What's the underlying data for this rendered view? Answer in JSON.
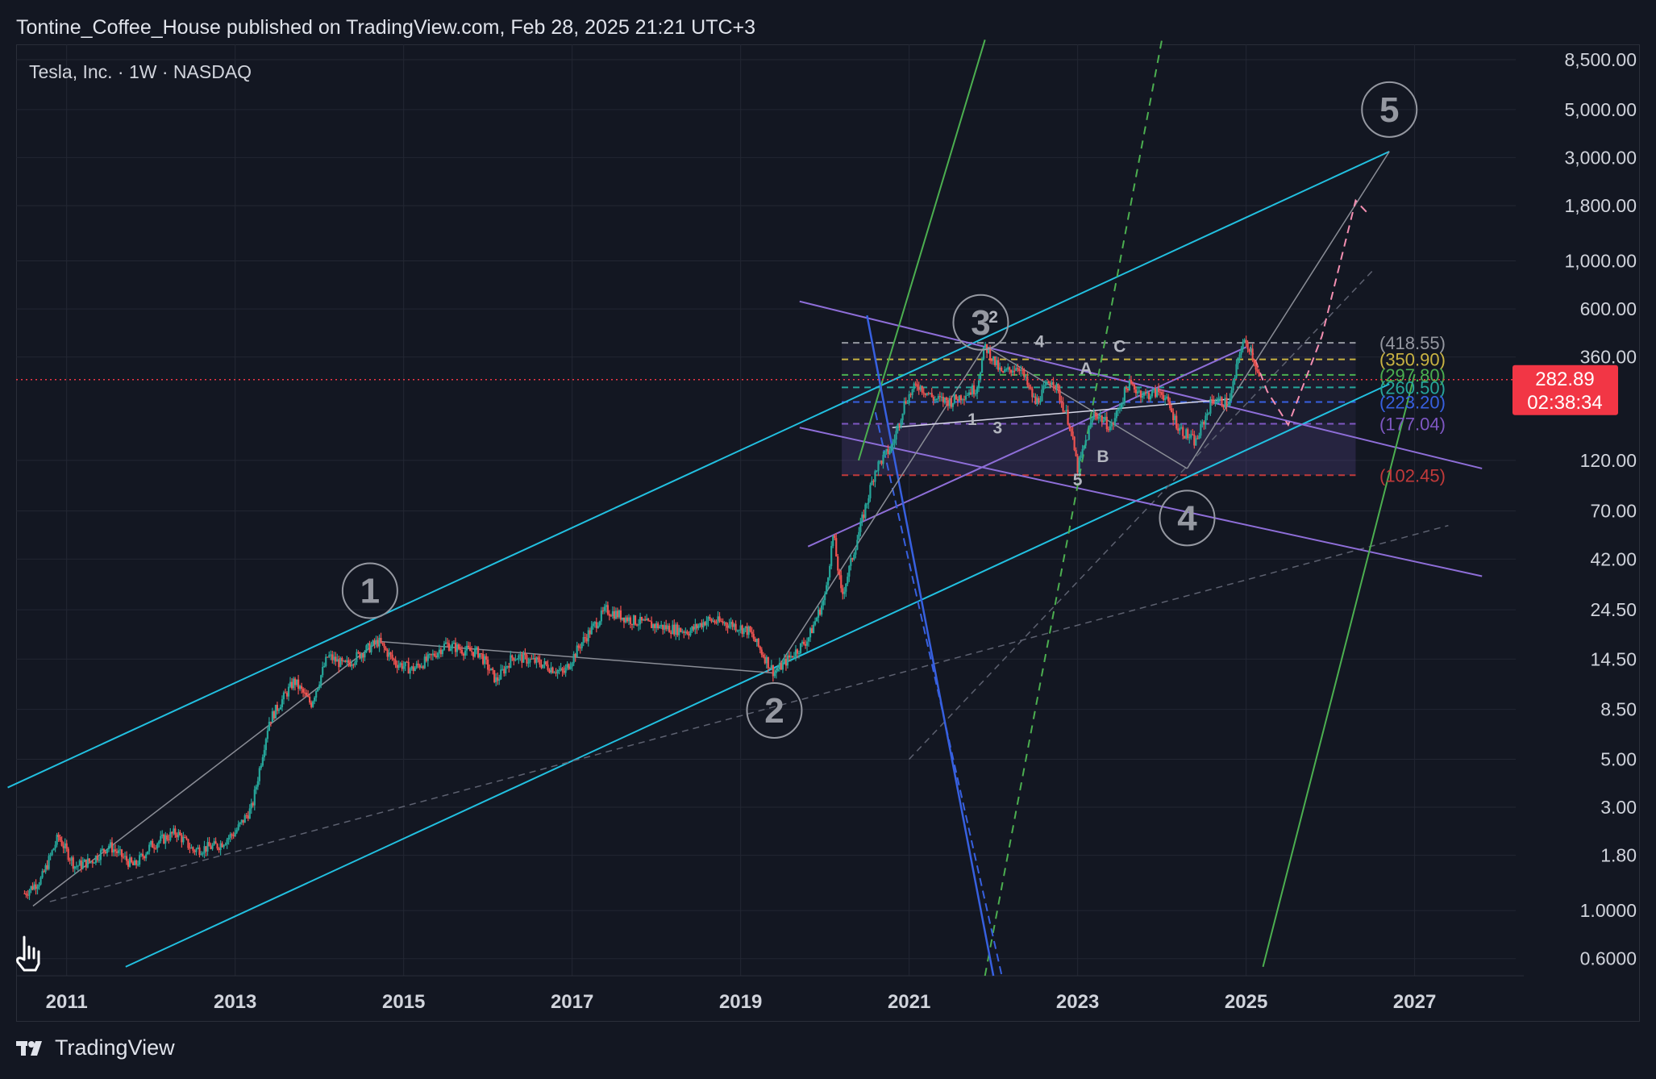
{
  "header": {
    "published": "Tontine_Coffee_House published on TradingView.com, Feb 28, 2025 21:21 UTC+3"
  },
  "symbol": {
    "label": "Tesla, Inc. · 1W · NASDAQ"
  },
  "footer": {
    "brand": "TradingView"
  },
  "colors": {
    "up": "#26a69a",
    "down": "#ef5350",
    "channel": "#22c0e0",
    "purple": "#8e6ed8",
    "green": "#4caf50",
    "blue": "#3760e0",
    "priceTag": "#f23645"
  },
  "chart_data": {
    "type": "line",
    "title": "Tesla, Inc. · 1W · NASDAQ",
    "y_scale": "log",
    "x_range": [
      2010.4,
      2028.2
    ],
    "y_range": [
      0.5,
      10000
    ],
    "y_ticks": [
      "8,500.00",
      "5,000.00",
      "3,000.00",
      "1,800.00",
      "1,000.00",
      "600.00",
      "360.00",
      "120.00",
      "70.00",
      "42.00",
      "24.50",
      "14.50",
      "8.50",
      "5.00",
      "3.00",
      "1.80",
      "1.0000",
      "0.6000"
    ],
    "y_tick_values": [
      8500,
      5000,
      3000,
      1800,
      1000,
      600,
      360,
      120,
      70,
      42,
      24.5,
      14.5,
      8.5,
      5,
      3,
      1.8,
      1,
      0.6
    ],
    "x_ticks": [
      "2011",
      "2013",
      "2015",
      "2017",
      "2019",
      "2021",
      "2023",
      "2025",
      "2027"
    ],
    "x_tick_values": [
      2011,
      2013,
      2015,
      2017,
      2019,
      2021,
      2023,
      2025,
      2027
    ],
    "price_path": [
      [
        2010.5,
        1.2
      ],
      [
        2010.7,
        1.4
      ],
      [
        2010.9,
        2.2
      ],
      [
        2011.1,
        1.6
      ],
      [
        2011.3,
        1.7
      ],
      [
        2011.5,
        2.0
      ],
      [
        2011.8,
        1.6
      ],
      [
        2012.0,
        2.0
      ],
      [
        2012.3,
        2.3
      ],
      [
        2012.5,
        1.9
      ],
      [
        2012.8,
        2.0
      ],
      [
        2013.0,
        2.3
      ],
      [
        2013.2,
        3.0
      ],
      [
        2013.4,
        7.5
      ],
      [
        2013.7,
        11.5
      ],
      [
        2013.9,
        9.0
      ],
      [
        2014.1,
        15.0
      ],
      [
        2014.3,
        13.5
      ],
      [
        2014.5,
        15.5
      ],
      [
        2014.7,
        17.5
      ],
      [
        2014.9,
        14.0
      ],
      [
        2015.1,
        13.0
      ],
      [
        2015.3,
        14.5
      ],
      [
        2015.5,
        17.0
      ],
      [
        2015.7,
        16.0
      ],
      [
        2015.9,
        15.5
      ],
      [
        2016.1,
        11.5
      ],
      [
        2016.3,
        15.0
      ],
      [
        2016.6,
        14.0
      ],
      [
        2016.9,
        12.5
      ],
      [
        2017.1,
        17.0
      ],
      [
        2017.4,
        24.5
      ],
      [
        2017.7,
        22.0
      ],
      [
        2017.9,
        21.0
      ],
      [
        2018.2,
        20.0
      ],
      [
        2018.4,
        19.5
      ],
      [
        2018.6,
        22.0
      ],
      [
        2018.9,
        21.0
      ],
      [
        2019.1,
        19.5
      ],
      [
        2019.4,
        12.5
      ],
      [
        2019.6,
        15.0
      ],
      [
        2019.8,
        18.0
      ],
      [
        2020.0,
        28.0
      ],
      [
        2020.1,
        55.0
      ],
      [
        2020.2,
        28.0
      ],
      [
        2020.4,
        55.0
      ],
      [
        2020.6,
        110.0
      ],
      [
        2020.8,
        140.0
      ],
      [
        2020.95,
        225.0
      ],
      [
        2021.1,
        270.0
      ],
      [
        2021.3,
        230.0
      ],
      [
        2021.5,
        225.0
      ],
      [
        2021.8,
        260.0
      ],
      [
        2021.9,
        405.0
      ],
      [
        2022.1,
        300.0
      ],
      [
        2022.3,
        330.0
      ],
      [
        2022.5,
        220.0
      ],
      [
        2022.7,
        290.0
      ],
      [
        2022.9,
        180.0
      ],
      [
        2023.0,
        110.0
      ],
      [
        2023.2,
        200.0
      ],
      [
        2023.4,
        170.0
      ],
      [
        2023.6,
        270.0
      ],
      [
        2023.8,
        240.0
      ],
      [
        2024.0,
        250.0
      ],
      [
        2024.2,
        170.0
      ],
      [
        2024.4,
        145.0
      ],
      [
        2024.6,
        230.0
      ],
      [
        2024.8,
        220.0
      ],
      [
        2024.95,
        420.0
      ],
      [
        2025.05,
        400.0
      ],
      [
        2025.16,
        282.89
      ]
    ],
    "current_price": "282.89",
    "countdown": "02:38:34",
    "fib_levels": [
      {
        "label": "(418.55)",
        "value": 418.55,
        "color": "#9598a1"
      },
      {
        "label": "(350.90)",
        "value": 350.9,
        "color": "#c9b342"
      },
      {
        "label": "(297.80)",
        "value": 297.8,
        "color": "#4caf50"
      },
      {
        "label": "(260.50)",
        "value": 260.5,
        "color": "#26a69a"
      },
      {
        "label": "(223.20)",
        "value": 223.2,
        "color": "#3760e0"
      },
      {
        "label": "(177.04)",
        "value": 177.04,
        "color": "#7e57c2"
      },
      {
        "label": "(102.45)",
        "value": 102.45,
        "color": "#c13a3a"
      }
    ],
    "wave_labels_circled": [
      "1",
      "2",
      "3",
      "4",
      "5"
    ],
    "wave_labels_small": [
      "1",
      "2",
      "3",
      "4",
      "5",
      "A",
      "B",
      "C"
    ]
  }
}
